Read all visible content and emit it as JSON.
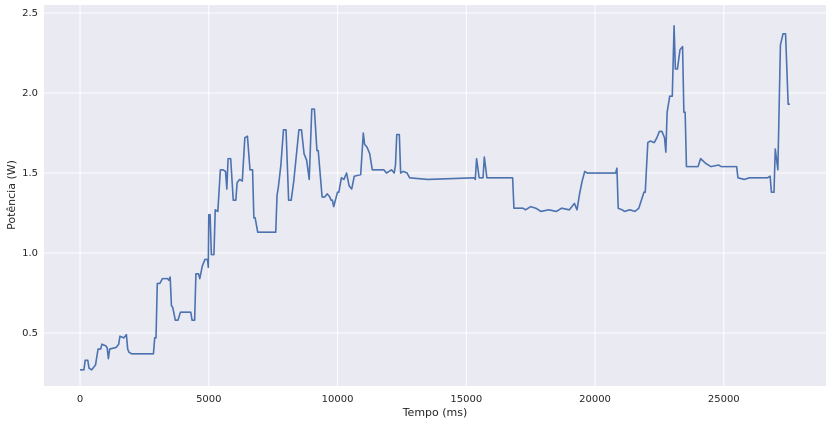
{
  "chart_data": {
    "type": "line",
    "xlabel": "Tempo (ms)",
    "ylabel": "Potência (W)",
    "x": [
      0,
      150,
      200,
      300,
      350,
      450,
      600,
      700,
      800,
      850,
      1000,
      1050,
      1100,
      1150,
      1400,
      1500,
      1550,
      1700,
      1800,
      1850,
      1900,
      2000,
      2850,
      2900,
      2950,
      3000,
      3100,
      3200,
      3400,
      3450,
      3500,
      3550,
      3600,
      3700,
      3800,
      3900,
      4300,
      4350,
      4450,
      4500,
      4600,
      4650,
      4750,
      4850,
      4950,
      4980,
      5000,
      5050,
      5100,
      5200,
      5250,
      5350,
      5450,
      5550,
      5650,
      5700,
      5750,
      5850,
      5950,
      6050,
      6100,
      6200,
      6300,
      6400,
      6500,
      6600,
      6700,
      6750,
      6800,
      6900,
      7600,
      7650,
      7700,
      7800,
      7900,
      8000,
      8100,
      8200,
      8250,
      8300,
      8400,
      8500,
      8600,
      8700,
      8800,
      8850,
      8900,
      9000,
      9100,
      9200,
      9250,
      9400,
      9500,
      9600,
      9700,
      9750,
      9800,
      9850,
      10000,
      10050,
      10150,
      10250,
      10350,
      10450,
      10550,
      10650,
      10900,
      11000,
      11050,
      11150,
      11250,
      11350,
      11800,
      11900,
      12100,
      12200,
      12250,
      12300,
      12400,
      12450,
      12550,
      12700,
      12800,
      13500,
      15300,
      15350,
      15400,
      15500,
      15650,
      15700,
      15800,
      16800,
      16850,
      17200,
      17300,
      17500,
      17700,
      17900,
      18200,
      18500,
      18700,
      19000,
      19200,
      19300,
      19400,
      19500,
      19600,
      19700,
      20800,
      20850,
      20900,
      21050,
      21150,
      21350,
      21550,
      21700,
      21900,
      21950,
      22050,
      22150,
      22300,
      22400,
      22500,
      22600,
      22700,
      22750,
      22800,
      22900,
      23000,
      23070,
      23120,
      23200,
      23300,
      23400,
      23450,
      23500,
      23550,
      24000,
      24100,
      24300,
      24500,
      24800,
      24900,
      25500,
      25550,
      25800,
      26000,
      26700,
      26800,
      26850,
      26950,
      27000,
      27100,
      27200,
      27300,
      27400,
      27500,
      27570
    ],
    "values": [
      0.27,
      0.27,
      0.33,
      0.33,
      0.28,
      0.27,
      0.3,
      0.4,
      0.4,
      0.43,
      0.42,
      0.41,
      0.34,
      0.4,
      0.41,
      0.43,
      0.48,
      0.47,
      0.49,
      0.4,
      0.38,
      0.37,
      0.37,
      0.47,
      0.47,
      0.81,
      0.81,
      0.84,
      0.84,
      0.83,
      0.85,
      0.67,
      0.66,
      0.58,
      0.58,
      0.63,
      0.63,
      0.58,
      0.58,
      0.87,
      0.87,
      0.84,
      0.92,
      0.96,
      0.96,
      0.91,
      1.24,
      1.24,
      0.99,
      0.99,
      1.27,
      1.26,
      1.52,
      1.52,
      1.51,
      1.4,
      1.59,
      1.59,
      1.33,
      1.33,
      1.44,
      1.46,
      1.45,
      1.72,
      1.73,
      1.52,
      1.52,
      1.22,
      1.22,
      1.13,
      1.13,
      1.36,
      1.41,
      1.55,
      1.77,
      1.77,
      1.33,
      1.33,
      1.39,
      1.45,
      1.61,
      1.77,
      1.77,
      1.62,
      1.58,
      1.52,
      1.46,
      1.9,
      1.9,
      1.64,
      1.64,
      1.35,
      1.35,
      1.37,
      1.35,
      1.33,
      1.33,
      1.29,
      1.38,
      1.38,
      1.47,
      1.46,
      1.5,
      1.42,
      1.4,
      1.48,
      1.49,
      1.75,
      1.68,
      1.66,
      1.62,
      1.52,
      1.52,
      1.5,
      1.52,
      1.5,
      1.55,
      1.74,
      1.74,
      1.5,
      1.51,
      1.5,
      1.47,
      1.46,
      1.47,
      1.46,
      1.59,
      1.47,
      1.47,
      1.6,
      1.47,
      1.47,
      1.28,
      1.28,
      1.27,
      1.29,
      1.28,
      1.26,
      1.27,
      1.26,
      1.28,
      1.27,
      1.31,
      1.27,
      1.37,
      1.45,
      1.51,
      1.5,
      1.5,
      1.53,
      1.28,
      1.27,
      1.26,
      1.27,
      1.26,
      1.28,
      1.38,
      1.38,
      1.69,
      1.7,
      1.69,
      1.72,
      1.76,
      1.76,
      1.72,
      1.63,
      1.88,
      1.98,
      1.98,
      2.42,
      2.15,
      2.15,
      2.27,
      2.29,
      1.88,
      1.88,
      1.54,
      1.54,
      1.59,
      1.56,
      1.54,
      1.55,
      1.54,
      1.54,
      1.47,
      1.46,
      1.47,
      1.47,
      1.48,
      1.38,
      1.38,
      1.65,
      1.52,
      2.3,
      2.37,
      2.37,
      1.93,
      1.93
    ],
    "color": "#4c72b0",
    "xlim": [
      -1400,
      28970
    ],
    "xticks": [
      0,
      5000,
      10000,
      15000,
      20000,
      25000
    ],
    "ylim": [
      0.169,
      2.55
    ],
    "yticks": [
      0.5,
      {
        "value": 1,
        "label": "1.0"
      },
      1.5,
      {
        "value": 2,
        "label": "2.0"
      },
      2.5
    ],
    "grid": true
  }
}
